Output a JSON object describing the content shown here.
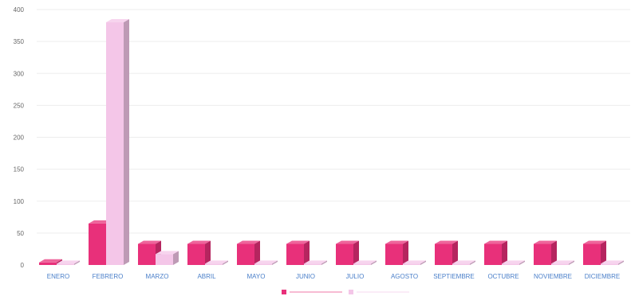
{
  "chart_data": {
    "type": "bar",
    "categories": [
      "ENERO",
      "FEBRERO",
      "MARZO",
      "ABRIL",
      "MAYO",
      "JUNIO",
      "JULIO",
      "AGOSTO",
      "SEPTIEMBRE",
      "OCTUBRE",
      "NOVIEMBRE",
      "DICIEMBRE"
    ],
    "series": [
      {
        "color": "#e8307a",
        "values": [
          4,
          65,
          33,
          33,
          33,
          33,
          33,
          33,
          33,
          33,
          33,
          33
        ]
      },
      {
        "color": "#f4c6e8",
        "values": [
          2,
          380,
          17,
          2,
          2,
          2,
          2,
          2,
          2,
          2,
          2,
          2
        ]
      }
    ],
    "y_ticks": [
      0,
      50,
      100,
      150,
      200,
      250,
      300,
      350,
      400
    ],
    "ylim": [
      0,
      400
    ],
    "grid": true,
    "legend": "bottom-center"
  }
}
